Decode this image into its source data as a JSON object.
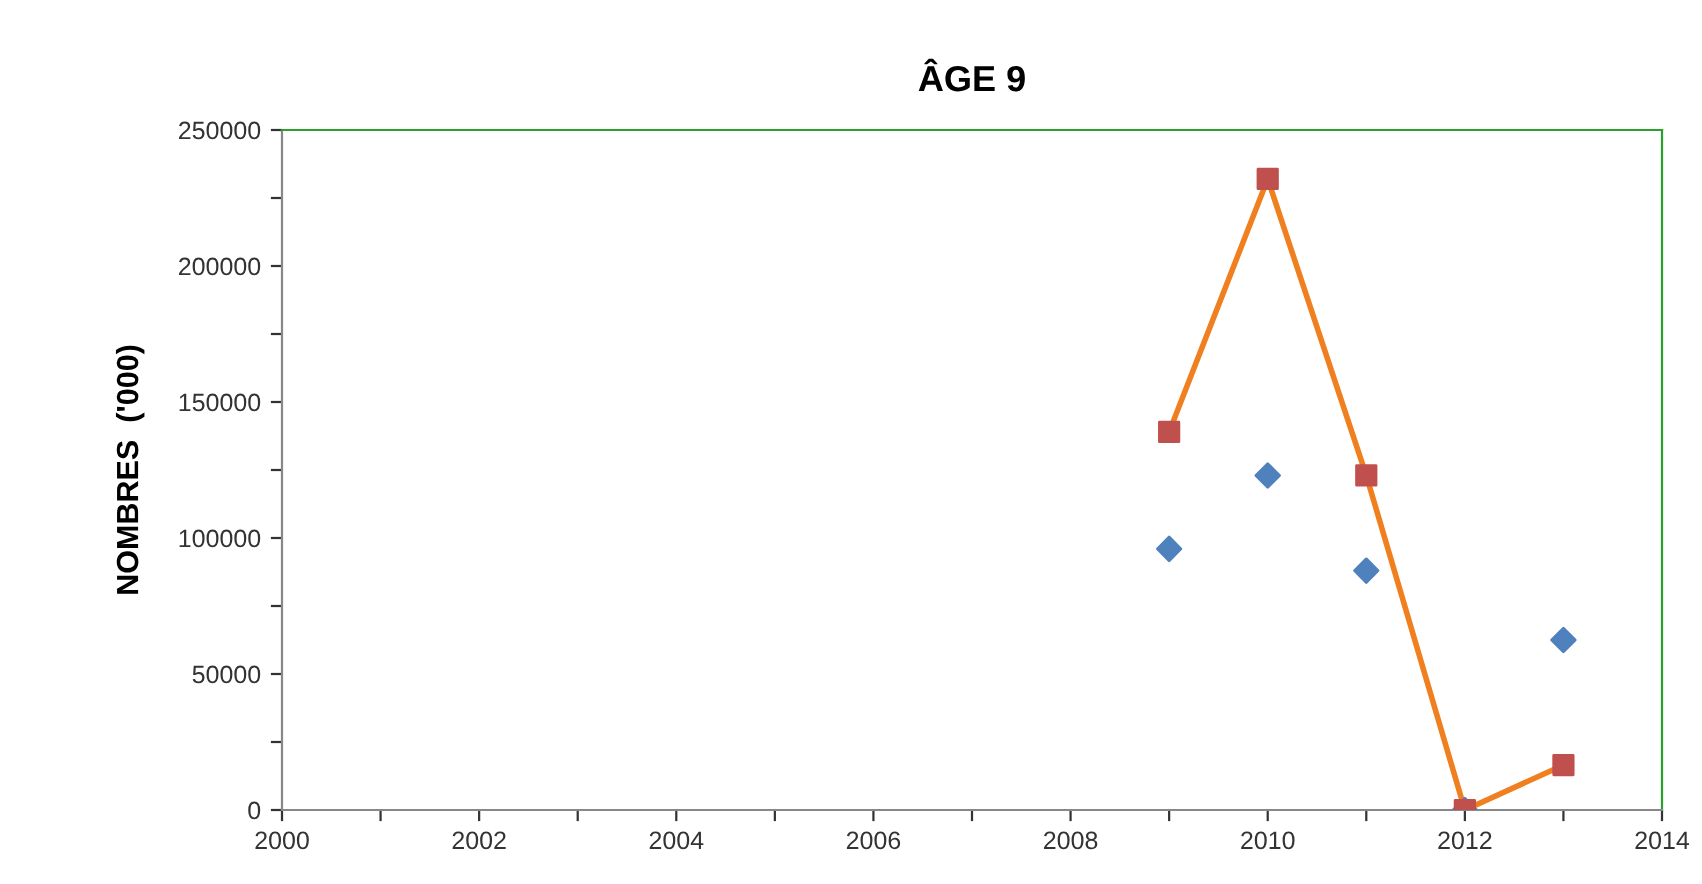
{
  "chart_data": {
    "type": "scatter",
    "title": "ÂGE 9",
    "ylabel": "NOMBRES  ('000)",
    "x": [
      2009,
      2010,
      2011,
      2012,
      2013
    ],
    "series": [
      {
        "color": "#4f81bd",
        "marker": "diamond",
        "values": [
          96000,
          123000,
          88000,
          0,
          62500
        ]
      },
      {
        "type": "line",
        "color": "#f07f1f",
        "colors": [
          "#c0504d",
          "#c0504d",
          "#c0504d",
          "#c0504d",
          "#c0504d"
        ],
        "marker": "square",
        "values": [
          139000,
          232000,
          123000,
          0,
          16500
        ]
      }
    ],
    "xlim": [
      2000,
      2014
    ],
    "xticks": [
      2000,
      {
        "value": 2001,
        "label": null
      },
      2002,
      {
        "value": 2003,
        "label": null
      },
      2004,
      {
        "value": 2005,
        "label": null
      },
      2006,
      {
        "value": 2007,
        "label": null
      },
      2008,
      {
        "value": 2009,
        "label": null
      },
      2010,
      {
        "value": 2011,
        "label": null
      },
      2012,
      {
        "value": 2013,
        "label": null
      },
      2014
    ],
    "ylim": [
      0,
      250000
    ],
    "yticks": [
      0,
      {
        "value": 25000,
        "label": null
      },
      50000,
      {
        "value": 75000,
        "label": null
      },
      100000,
      {
        "value": 125000,
        "label": null
      },
      150000,
      {
        "value": 175000,
        "label": null
      },
      200000,
      {
        "value": 225000,
        "label": null
      },
      250000
    ],
    "grid": false,
    "legend": false
  }
}
